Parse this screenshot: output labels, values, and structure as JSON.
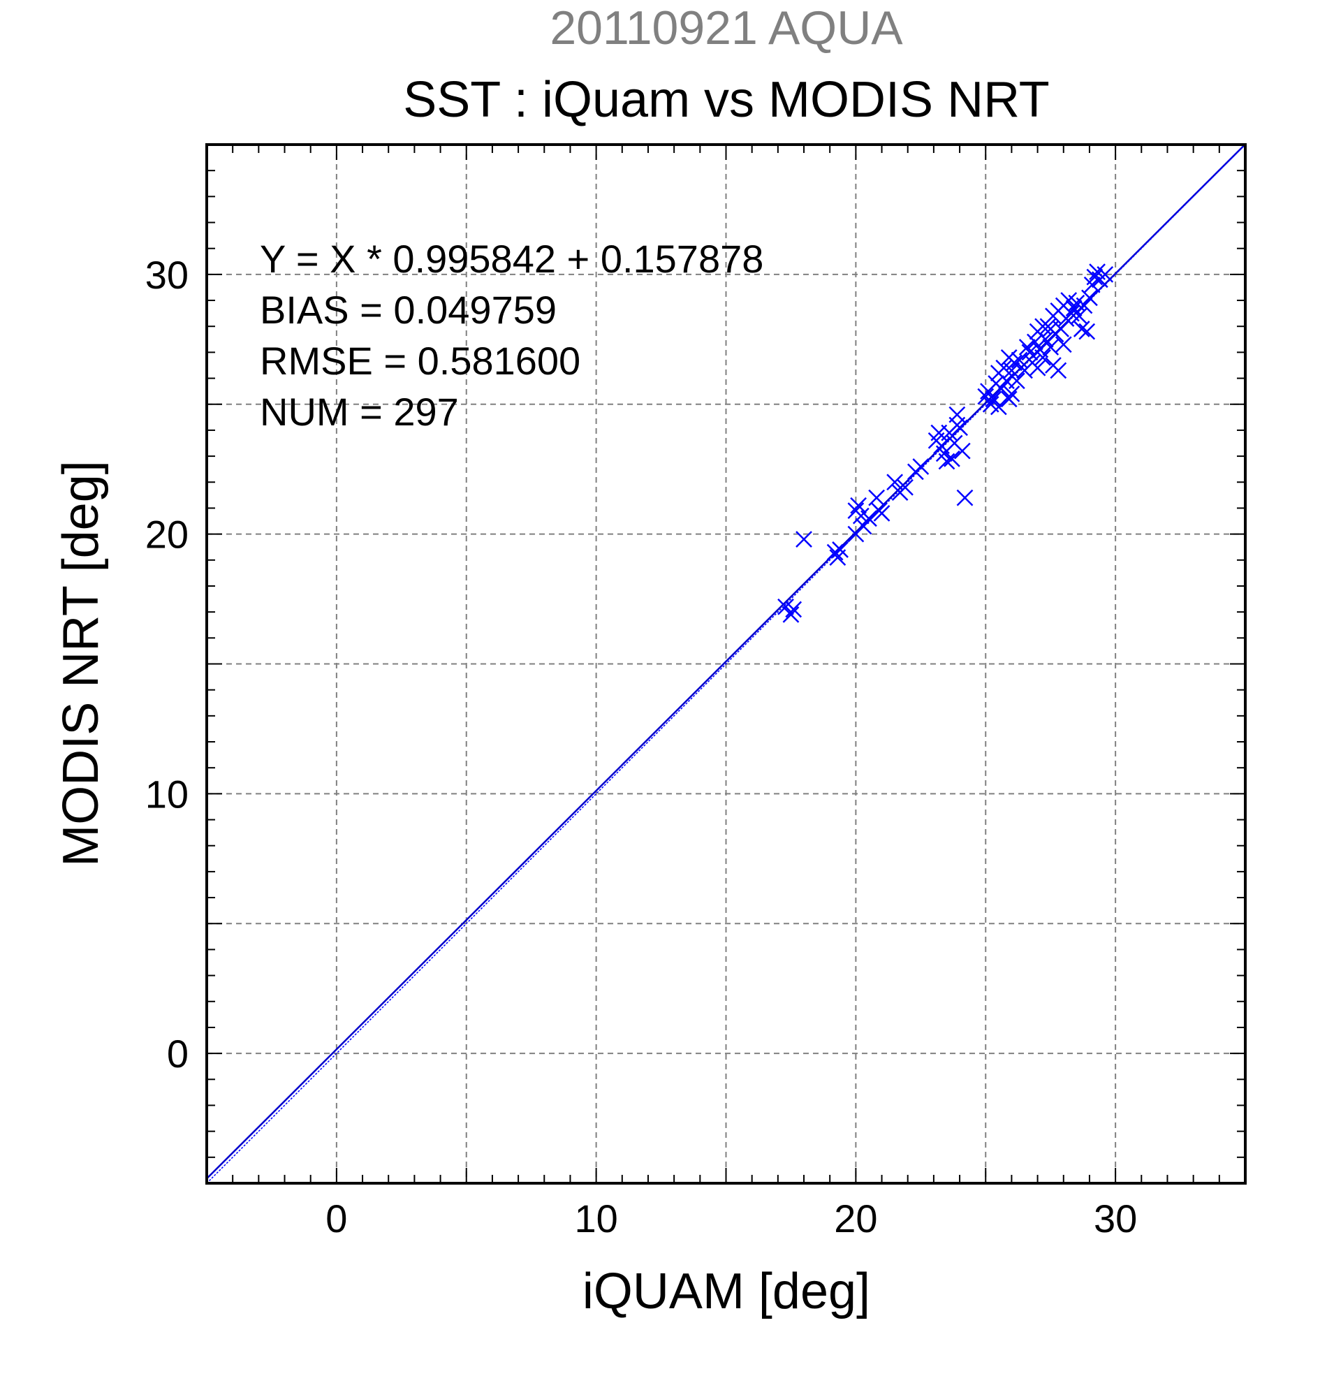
{
  "chart_data": {
    "type": "scatter",
    "supertitle": "20110921 AQUA",
    "title": "SST : iQuam vs MODIS NRT",
    "xlabel": "iQUAM [deg]",
    "ylabel": "MODIS NRT [deg]",
    "xlim": [
      -5,
      35
    ],
    "ylim": [
      -5,
      35
    ],
    "xticks": [
      0,
      10,
      20,
      30
    ],
    "yticks": [
      0,
      10,
      20,
      30
    ],
    "grid": true,
    "grid_step": 5,
    "colors": {
      "supertitle": "#808080",
      "series": "#0000ff",
      "fit_line": "#0000cc",
      "grid": "#808080",
      "text": "#000000"
    },
    "stats": [
      "Y = X * 0.995842 + 0.157878",
      "BIAS = 0.049759",
      "RMSE = 0.581600",
      "NUM = 297"
    ],
    "fit": {
      "slope": 0.995842,
      "intercept": 0.157878
    },
    "series": [
      {
        "marker": "x",
        "points": [
          [
            17.3,
            17.2
          ],
          [
            17.5,
            16.9
          ],
          [
            17.6,
            17.1
          ],
          [
            18.0,
            19.8
          ],
          [
            19.2,
            19.3
          ],
          [
            19.3,
            19.1
          ],
          [
            19.4,
            19.4
          ],
          [
            20.0,
            20.0
          ],
          [
            20.0,
            20.9
          ],
          [
            20.1,
            21.1
          ],
          [
            20.2,
            20.7
          ],
          [
            20.3,
            20.3
          ],
          [
            20.5,
            20.6
          ],
          [
            20.8,
            21.4
          ],
          [
            20.9,
            20.9
          ],
          [
            21.0,
            20.8
          ],
          [
            21.5,
            22.0
          ],
          [
            21.7,
            21.6
          ],
          [
            21.9,
            21.8
          ],
          [
            22.3,
            22.4
          ],
          [
            22.5,
            22.6
          ],
          [
            23.1,
            23.6
          ],
          [
            23.2,
            23.9
          ],
          [
            23.3,
            23.4
          ],
          [
            23.4,
            23.1
          ],
          [
            23.5,
            22.8
          ],
          [
            23.6,
            23.9
          ],
          [
            23.7,
            22.9
          ],
          [
            23.8,
            23.5
          ],
          [
            23.9,
            24.2
          ],
          [
            24.0,
            24.1
          ],
          [
            23.9,
            24.6
          ],
          [
            24.1,
            23.2
          ],
          [
            24.2,
            21.4
          ],
          [
            25.0,
            25.3
          ],
          [
            25.1,
            25.5
          ],
          [
            25.3,
            25.2
          ],
          [
            25.4,
            25.8
          ],
          [
            25.5,
            24.9
          ],
          [
            25.5,
            26.2
          ],
          [
            25.6,
            25.6
          ],
          [
            25.7,
            26.4
          ],
          [
            25.8,
            25.9
          ],
          [
            25.9,
            26.8
          ],
          [
            26.0,
            25.4
          ],
          [
            26.0,
            26.3
          ],
          [
            26.1,
            26.6
          ],
          [
            26.2,
            25.9
          ],
          [
            26.3,
            26.7
          ],
          [
            26.5,
            26.3
          ],
          [
            26.7,
            27.0
          ],
          [
            26.8,
            26.6
          ],
          [
            26.9,
            27.4
          ],
          [
            27.0,
            26.4
          ],
          [
            27.0,
            27.8
          ],
          [
            27.1,
            27.1
          ],
          [
            27.2,
            26.8
          ],
          [
            27.3,
            27.5
          ],
          [
            27.4,
            28.0
          ],
          [
            27.5,
            27.2
          ],
          [
            27.6,
            26.5
          ],
          [
            27.6,
            28.4
          ],
          [
            27.7,
            27.7
          ],
          [
            27.8,
            26.3
          ],
          [
            27.8,
            28.6
          ],
          [
            27.9,
            27.9
          ],
          [
            28.0,
            28.8
          ],
          [
            28.0,
            27.3
          ],
          [
            28.1,
            28.3
          ],
          [
            28.2,
            29.0
          ],
          [
            28.3,
            28.5
          ],
          [
            28.4,
            28.7
          ],
          [
            28.5,
            28.9
          ],
          [
            28.6,
            28.4
          ],
          [
            28.7,
            27.9
          ],
          [
            28.8,
            28.8
          ],
          [
            29.0,
            29.1
          ],
          [
            29.1,
            29.6
          ],
          [
            29.2,
            29.9
          ],
          [
            29.3,
            30.1
          ],
          [
            29.4,
            29.8
          ],
          [
            29.6,
            30.0
          ],
          [
            28.9,
            27.8
          ],
          [
            27.5,
            27.9
          ],
          [
            26.6,
            27.2
          ],
          [
            25.9,
            25.2
          ],
          [
            25.2,
            25.0
          ],
          [
            27.2,
            28.0
          ]
        ]
      }
    ]
  }
}
